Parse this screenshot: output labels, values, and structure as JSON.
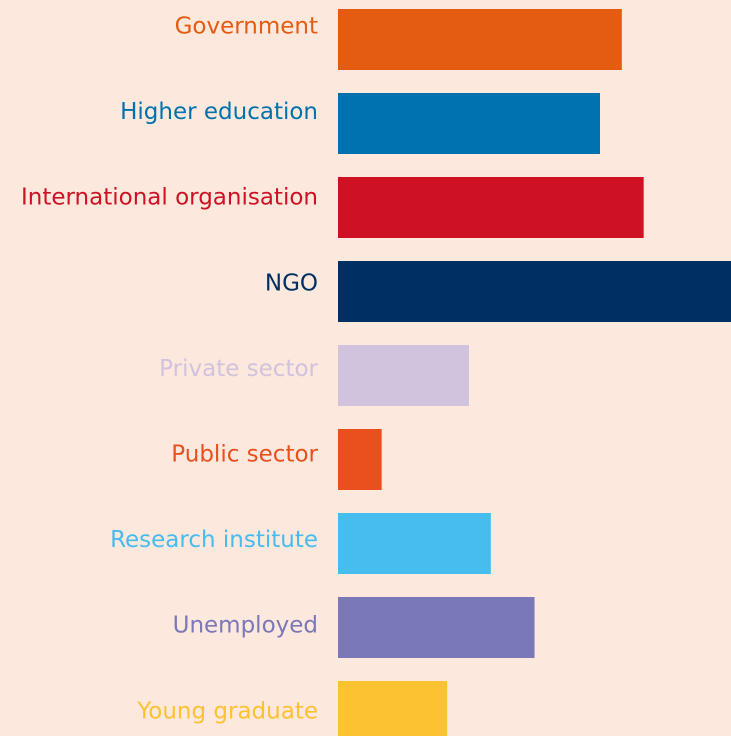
{
  "chart_data": {
    "type": "bar",
    "orientation": "horizontal",
    "categories": [
      "Government",
      "Higher education",
      "International organisation",
      "NGO",
      "Private sector",
      "Public sector",
      "Research institute",
      "Unemployed",
      "Young graduate"
    ],
    "values": [
      13,
      12,
      14,
      18,
      6,
      2,
      7,
      9,
      5
    ],
    "colors": [
      "#e35c12",
      "#0072ad",
      "#cf1124",
      "#003063",
      "#d1c2de",
      "#e9501e",
      "#46bdee",
      "#7a78b9",
      "#fbc232"
    ],
    "xlim": [
      0,
      18
    ]
  }
}
